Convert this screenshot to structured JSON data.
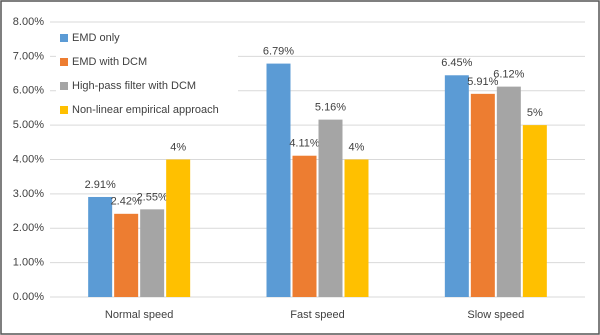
{
  "chart_data": {
    "type": "bar",
    "categories": [
      "Normal speed",
      "Fast speed",
      "Slow speed"
    ],
    "series": [
      {
        "name": "EMD only",
        "color": "#5b9bd5",
        "values": [
          2.91,
          6.79,
          6.45
        ],
        "value_labels": [
          "2.91%",
          "6.79%",
          "6.45%"
        ]
      },
      {
        "name": "EMD with DCM",
        "color": "#ed7d31",
        "values": [
          2.42,
          4.11,
          5.91
        ],
        "value_labels": [
          "2.42%",
          "4.11%",
          "5.91%"
        ]
      },
      {
        "name": "High-pass filter with DCM",
        "color": "#a5a5a5",
        "values": [
          2.55,
          5.16,
          6.12
        ],
        "value_labels": [
          "2.55%",
          "5.16%",
          "6.12%"
        ]
      },
      {
        "name": "Non-linear empirical approach",
        "color": "#ffc000",
        "values": [
          4,
          4,
          5
        ],
        "value_labels": [
          "4%",
          "4%",
          "5%"
        ]
      }
    ],
    "ylim": [
      0,
      8
    ],
    "yticks": [
      {
        "value": 0,
        "label": "0.00%"
      },
      {
        "value": 1,
        "label": "1.00%"
      },
      {
        "value": 2,
        "label": "2.00%"
      },
      {
        "value": 3,
        "label": "3.00%"
      },
      {
        "value": 4,
        "label": "4.00%"
      },
      {
        "value": 5,
        "label": "5.00%"
      },
      {
        "value": 6,
        "label": "6.00%"
      },
      {
        "value": 7,
        "label": "7.00%"
      },
      {
        "value": 8,
        "label": "8.00%"
      }
    ],
    "grid": true,
    "legend": "upper-left"
  }
}
